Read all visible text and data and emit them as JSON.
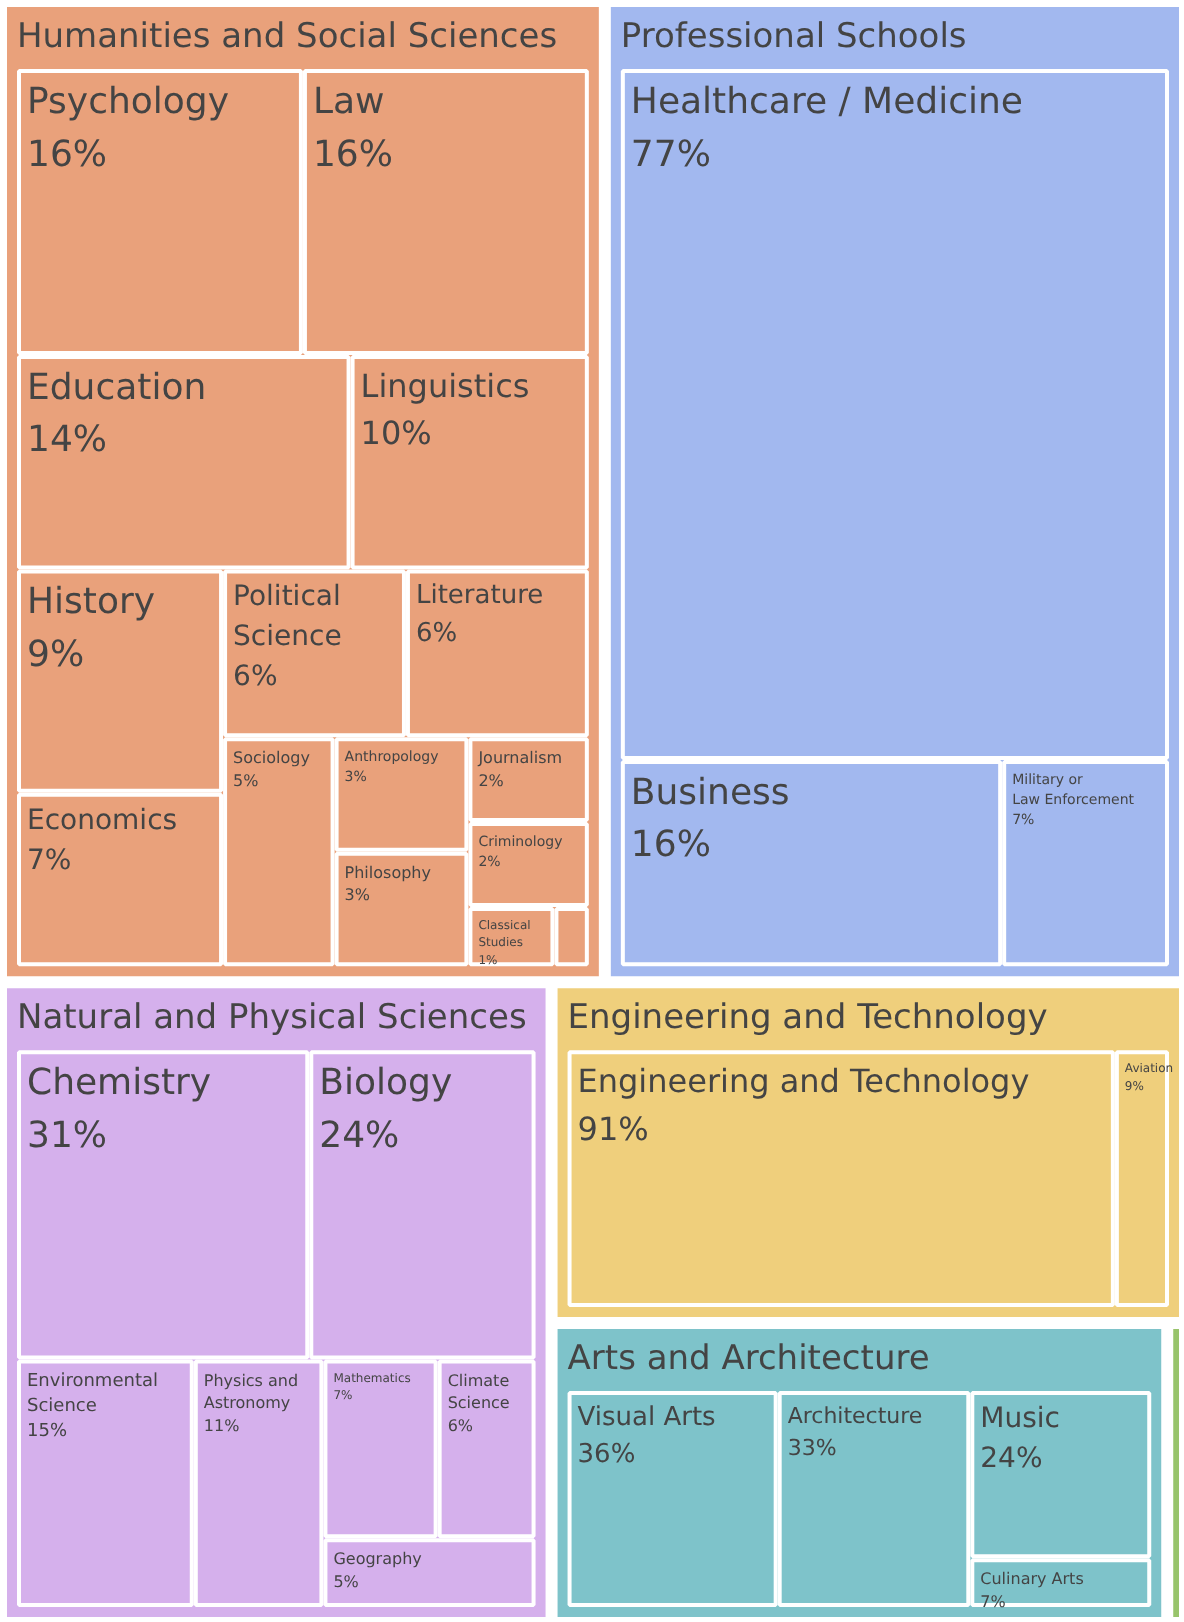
{
  "chart_data": {
    "type": "other",
    "annotations": [
      "Humanities and Social Sciences",
      "Professional Schools",
      "Natural and Physical Sciences",
      "Engineering and Technology",
      "Arts and Architecture"
    ],
    "categories": [
      "Psychology",
      "Law",
      "Education",
      "Linguistics",
      "History",
      "Economics",
      "Political\nScience",
      "Literature",
      "Sociology",
      "Anthropology",
      "Philosophy",
      "Journalism",
      "Criminology",
      "Classical\nStudies",
      null,
      "Healthcare / Medicine",
      "Business",
      "Military or\nLaw Enforcement",
      "Chemistry",
      "Biology",
      "Environmental\nScience",
      "Physics and\nAstronomy",
      "Mathematics",
      "Climate\nScience",
      "Geography",
      "Engineering and Technology",
      "Aviation",
      "Visual Arts",
      "Architecture",
      "Music",
      "Culinary Arts",
      null
    ],
    "values": [
      16,
      16,
      14,
      10,
      9,
      7,
      6,
      6,
      5,
      3,
      3,
      2,
      2,
      1,
      null,
      77,
      16,
      7,
      31,
      24,
      15,
      11,
      7,
      6,
      5,
      91,
      9,
      36,
      33,
      24,
      7,
      null
    ],
    "value_labels": [
      "16%",
      "16%",
      "14%",
      "10%",
      "9%",
      "7%",
      "6%",
      "6%",
      "5%",
      "3%",
      "3%",
      "2%",
      "2%",
      "1%",
      null,
      "77%",
      "16%",
      "7%",
      "31%",
      "24%",
      "15%",
      "11%",
      "7%",
      "6%",
      "5%",
      "91%",
      "9%",
      "36%",
      "33%",
      "24%",
      "7%",
      null
    ],
    "colors": [
      "#e9a17b",
      "#e9a17b",
      "#e9a17b",
      "#e9a17b",
      "#e9a17b",
      "#e9a17b",
      "#e9a17b",
      "#e9a17b",
      "#e9a17b",
      "#e9a17b",
      "#e9a17b",
      "#e9a17b",
      "#e9a17b",
      "#e9a17b",
      "#e9a17b",
      "#a2b8ef",
      "#a2b8ef",
      "#a2b8ef",
      "#d5b0ec",
      "#d5b0ec",
      "#d5b0ec",
      "#d5b0ec",
      "#d5b0ec",
      "#d5b0ec",
      "#d5b0ec",
      "#efcf7c",
      "#efcf7c",
      "#7ec3ca",
      "#7ec3ca",
      "#7ec3ca",
      "#7ec3ca",
      "#98c46b"
    ]
  }
}
